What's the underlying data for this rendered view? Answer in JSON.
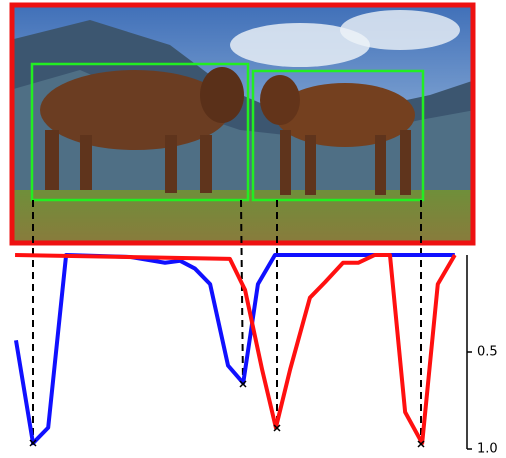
{
  "chart_data": {
    "type": "line",
    "series": [
      {
        "color": "#1010ff",
        "x": [
          1.3,
          5.0,
          8.3,
          12.2,
          26.1,
          33.7,
          37.0,
          40.2,
          43.5,
          47.4,
          50.7,
          53.9,
          57.6,
          96.7
        ],
        "values": [
          0.44,
          0.97,
          0.89,
          0,
          0.01,
          0.04,
          0.03,
          0.07,
          0.15,
          0.57,
          0.66,
          0.15,
          0,
          0
        ]
      },
      {
        "color": "#ff1010",
        "x": [
          1.1,
          47.8,
          51.1,
          54.8,
          57.8,
          60.9,
          65.2,
          68.5,
          72.4,
          75.7,
          79.3,
          82.6,
          85.9,
          89.6,
          93.0,
          96.7
        ],
        "values": [
          0,
          0.02,
          0.18,
          0.59,
          0.89,
          0.59,
          0.22,
          0.14,
          0.04,
          0.04,
          0,
          0,
          0.81,
          0.97,
          0.15,
          0
        ]
      }
    ],
    "xlim": [
      0,
      100
    ],
    "ylim": [
      1.0,
      0
    ],
    "yticks": [
      0.5,
      {
        "value": 1.0,
        "label": "1.0"
      }
    ]
  }
}
